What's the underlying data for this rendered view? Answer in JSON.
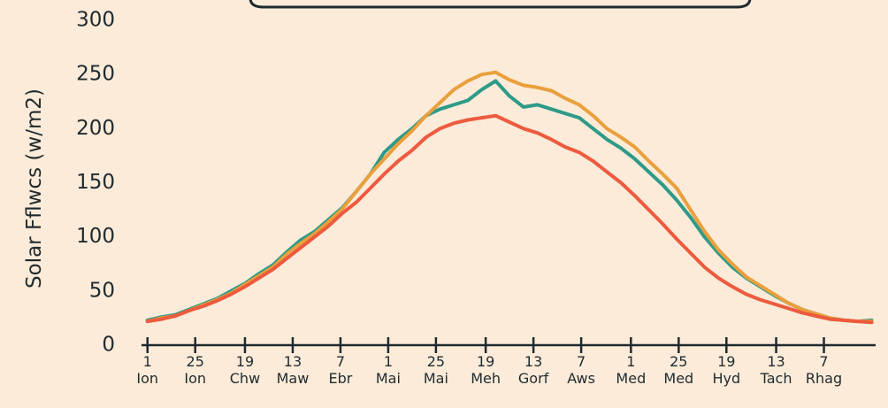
{
  "chart_data": {
    "type": "line",
    "y_label": "Solar Fflwcs (w/m2)",
    "x": [
      1,
      8,
      15,
      22,
      29,
      36,
      43,
      50,
      57,
      64,
      71,
      78,
      85,
      92,
      99,
      106,
      113,
      120,
      127,
      134,
      141,
      148,
      155,
      162,
      169,
      176,
      183,
      190,
      197,
      204,
      211,
      218,
      225,
      232,
      239,
      246,
      253,
      260,
      267,
      274,
      281,
      288,
      295,
      302,
      309,
      316,
      323,
      330,
      337,
      344,
      351,
      358,
      365
    ],
    "xlim": [
      -2,
      367
    ],
    "xticks": [
      {
        "value": 1,
        "label": "1 Ion"
      },
      {
        "value": 25,
        "label": "25 Ion"
      },
      {
        "value": 50,
        "label": "19 Chw"
      },
      {
        "value": 74,
        "label": "13 Maw"
      },
      {
        "value": 98,
        "label": "7 Ebr"
      },
      {
        "value": 122,
        "label": "1 Mai"
      },
      {
        "value": 146,
        "label": "25 Mai"
      },
      {
        "value": 171,
        "label": "19 Meh"
      },
      {
        "value": 195,
        "label": "13 Gorf"
      },
      {
        "value": 219,
        "label": "7 Aws"
      },
      {
        "value": 244,
        "label": "1 Med"
      },
      {
        "value": 268,
        "label": "25 Med"
      },
      {
        "value": 292,
        "label": "19 Hyd"
      },
      {
        "value": 317,
        "label": "13 Tach"
      },
      {
        "value": 341,
        "label": "7 Rhag"
      }
    ],
    "ylim": [
      0,
      300
    ],
    "yticks": [
      0,
      50,
      100,
      150,
      200,
      250,
      300
    ],
    "series": [
      {
        "color": "#2e9a88",
        "values": [
          23,
          26,
          28,
          33,
          38,
          43,
          50,
          57,
          66,
          74,
          86,
          97,
          105,
          116,
          127,
          142,
          158,
          178,
          190,
          200,
          212,
          218,
          222,
          226,
          236,
          244,
          230,
          220,
          222,
          218,
          214,
          210,
          200,
          190,
          182,
          172,
          160,
          148,
          134,
          118,
          100,
          85,
          72,
          62,
          54,
          46,
          39,
          33,
          29,
          25,
          23,
          22,
          23
        ]
      },
      {
        "color": "#e9a03c",
        "values": [
          22,
          25,
          27,
          32,
          37,
          42,
          48,
          56,
          64,
          72,
          84,
          94,
          103,
          114,
          126,
          142,
          158,
          172,
          186,
          198,
          212,
          224,
          236,
          244,
          250,
          252,
          245,
          240,
          238,
          235,
          228,
          222,
          212,
          200,
          192,
          183,
          170,
          158,
          145,
          125,
          105,
          88,
          75,
          63,
          55,
          47,
          39,
          33,
          29,
          25,
          23,
          22,
          22
        ]
      },
      {
        "color": "#ee5a3e",
        "values": [
          22,
          24,
          27,
          32,
          36,
          41,
          47,
          54,
          62,
          70,
          80,
          90,
          100,
          110,
          122,
          132,
          145,
          158,
          170,
          180,
          192,
          200,
          205,
          208,
          210,
          212,
          206,
          200,
          196,
          190,
          183,
          178,
          170,
          160,
          150,
          138,
          125,
          112,
          98,
          85,
          72,
          62,
          54,
          47,
          42,
          38,
          34,
          30,
          27,
          24,
          23,
          22,
          21
        ]
      }
    ]
  }
}
